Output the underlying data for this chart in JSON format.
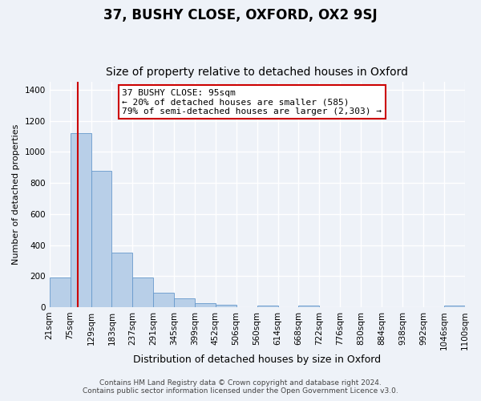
{
  "title": "37, BUSHY CLOSE, OXFORD, OX2 9SJ",
  "subtitle": "Size of property relative to detached houses in Oxford",
  "xlabel": "Distribution of detached houses by size in Oxford",
  "ylabel": "Number of detached properties",
  "bin_edges": [
    21,
    75,
    129,
    183,
    237,
    291,
    345,
    399,
    452,
    506,
    560,
    614,
    668,
    722,
    776,
    830,
    884,
    938,
    992,
    1046,
    1100
  ],
  "bar_heights": [
    193,
    1120,
    880,
    350,
    193,
    93,
    55,
    25,
    15,
    0,
    12,
    0,
    10,
    0,
    0,
    0,
    0,
    0,
    0,
    8
  ],
  "bar_color": "#b8cfe8",
  "bar_edge_color": "#6699cc",
  "ylim": [
    0,
    1450
  ],
  "yticks": [
    0,
    200,
    400,
    600,
    800,
    1000,
    1200,
    1400
  ],
  "red_line_x": 95,
  "annotation_title": "37 BUSHY CLOSE: 95sqm",
  "annotation_line1": "← 20% of detached houses are smaller (585)",
  "annotation_line2": "79% of semi-detached houses are larger (2,303) →",
  "annotation_box_color": "#ffffff",
  "annotation_box_edge_color": "#cc0000",
  "red_line_color": "#cc0000",
  "footer_line1": "Contains HM Land Registry data © Crown copyright and database right 2024.",
  "footer_line2": "Contains public sector information licensed under the Open Government Licence v3.0.",
  "background_color": "#eef2f8",
  "plot_background_color": "#eef2f8",
  "grid_color": "#ffffff",
  "title_fontsize": 12,
  "subtitle_fontsize": 10,
  "xlabel_fontsize": 9,
  "ylabel_fontsize": 8,
  "tick_label_fontsize": 7.5,
  "annotation_fontsize": 8,
  "footer_fontsize": 6.5
}
